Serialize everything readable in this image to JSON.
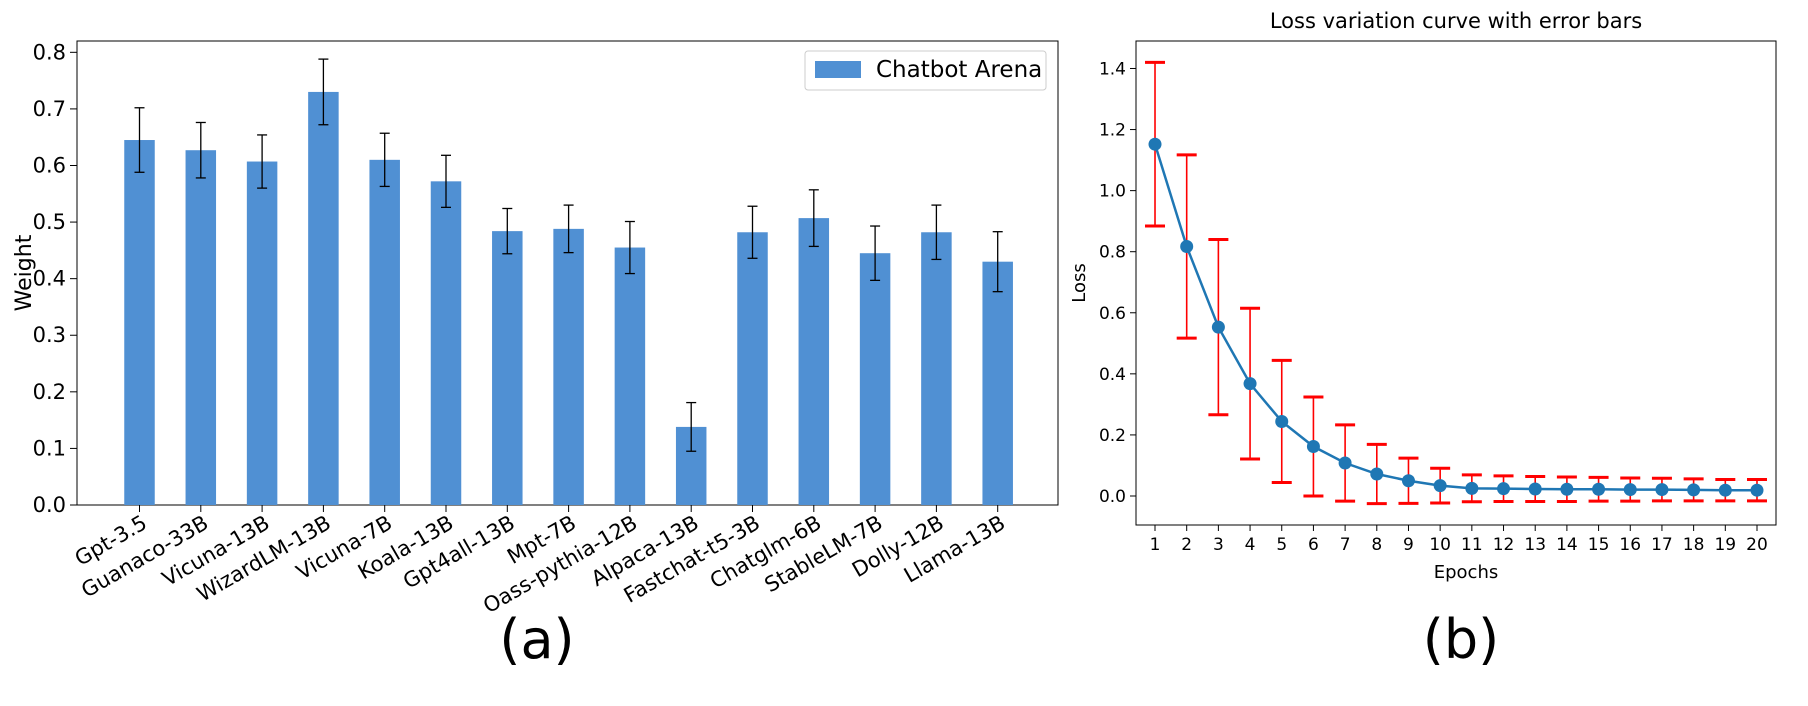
{
  "chart_data": [
    {
      "type": "bar",
      "panel_label": "(a)",
      "title": "",
      "xlabel": "",
      "ylabel": "Weight",
      "ylim": [
        0,
        0.82
      ],
      "yticks": [
        "0.0",
        "0.1",
        "0.2",
        "0.3",
        "0.4",
        "0.5",
        "0.6",
        "0.7",
        "0.8"
      ],
      "legend": {
        "position": "top-right",
        "entries": [
          "Chatbot Arena"
        ]
      },
      "bar_color": "#5090d3",
      "categories": [
        "Gpt-3.5",
        "Guanaco-33B",
        "Vicuna-13B",
        "WizardLM-13B",
        "Vicuna-7B",
        "Koala-13B",
        "Gpt4all-13B",
        "Mpt-7B",
        "Oass-pythia-12B",
        "Alpaca-13B",
        "Fastchat-t5-3B",
        "Chatglm-6B",
        "StableLM-7B",
        "Dolly-12B",
        "Llama-13B"
      ],
      "series": [
        {
          "name": "Chatbot Arena",
          "values": [
            0.645,
            0.627,
            0.607,
            0.73,
            0.61,
            0.572,
            0.484,
            0.488,
            0.455,
            0.138,
            0.482,
            0.507,
            0.445,
            0.482,
            0.43
          ],
          "error": [
            0.057,
            0.049,
            0.047,
            0.058,
            0.047,
            0.046,
            0.04,
            0.042,
            0.046,
            0.043,
            0.046,
            0.05,
            0.048,
            0.048,
            0.053
          ]
        }
      ]
    },
    {
      "type": "line",
      "panel_label": "(b)",
      "title": "Loss variation curve with error bars",
      "xlabel": "Epochs",
      "ylabel": "Loss",
      "xlim": [
        0.4,
        20.6
      ],
      "ylim": [
        -0.095,
        1.49
      ],
      "yticks": [
        "0.0",
        "0.2",
        "0.4",
        "0.6",
        "0.8",
        "1.0",
        "1.2",
        "1.4"
      ],
      "line_color": "#1f77b4",
      "error_color": "#ff0000",
      "x": [
        1,
        2,
        3,
        4,
        5,
        6,
        7,
        8,
        9,
        10,
        11,
        12,
        13,
        14,
        15,
        16,
        17,
        18,
        19,
        20
      ],
      "series": [
        {
          "name": "Loss",
          "values": [
            1.152,
            0.817,
            0.553,
            0.368,
            0.244,
            0.162,
            0.108,
            0.072,
            0.05,
            0.034,
            0.025,
            0.024,
            0.023,
            0.022,
            0.022,
            0.021,
            0.021,
            0.02,
            0.019,
            0.019
          ],
          "error": [
            0.268,
            0.3,
            0.287,
            0.247,
            0.2,
            0.162,
            0.125,
            0.097,
            0.074,
            0.057,
            0.044,
            0.042,
            0.041,
            0.04,
            0.039,
            0.038,
            0.037,
            0.036,
            0.035,
            0.035
          ]
        }
      ]
    }
  ]
}
